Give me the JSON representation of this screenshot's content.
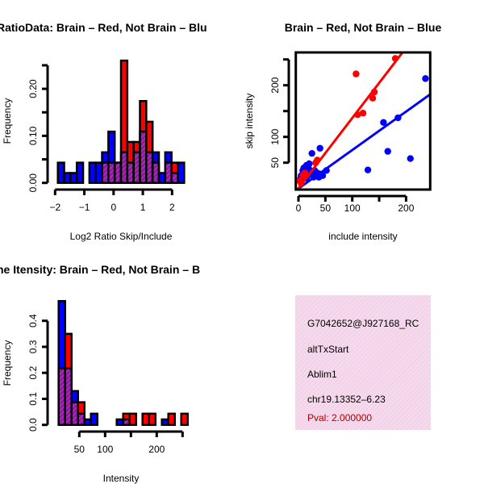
{
  "colors": {
    "brain": "#FF0000",
    "not_brain": "#0000FF",
    "overlap": "#8B1A9B",
    "box_bg": "#F8D8F0"
  },
  "chart_data": [
    {
      "type": "bar",
      "title": "RatioData: Brain – Red, Not Brain – Blu",
      "xlabel": "Log2 Ratio Skip/Include",
      "ylabel": "Frequency",
      "bin_start": -1.906,
      "bin_width": 0.216,
      "xticks": [
        -2,
        -1,
        0,
        1,
        2
      ],
      "xtick_labels": [
        "−2",
        "−1",
        "0",
        "1",
        "2"
      ],
      "yticks": [
        0,
        0.05,
        0.1,
        0.15,
        0.2,
        0.25
      ],
      "ytick_labels": [
        "0.00",
        "",
        "0.10",
        "",
        "0.20",
        ""
      ],
      "series": [
        {
          "name": "Brain",
          "color": "red",
          "values": [
            0,
            0,
            0,
            0,
            0,
            0,
            0,
            0.043,
            0.043,
            0.043,
            0.26,
            0.087,
            0.087,
            0.174,
            0.13,
            0.043,
            0,
            0.043,
            0.043,
            0
          ]
        },
        {
          "name": "Not Brain",
          "color": "blue",
          "values": [
            0.043,
            0.021,
            0.021,
            0.043,
            0,
            0.043,
            0.043,
            0.065,
            0.109,
            0.043,
            0.065,
            0.043,
            0.065,
            0.109,
            0.065,
            0.065,
            0.021,
            0.065,
            0.021,
            0.043
          ]
        }
      ]
    },
    {
      "type": "scatter",
      "title": "Brain – Red, Not Brain – Blue",
      "xlabel": "include intensity",
      "ylabel": "skip intensity",
      "xlim": [
        -5,
        245
      ],
      "ylim": [
        -2,
        264
      ],
      "xticks": [
        0,
        50,
        100,
        150,
        200
      ],
      "xtick_labels": [
        "0",
        "50",
        "100",
        "",
        "200"
      ],
      "yticks": [
        50,
        100,
        150,
        200,
        250
      ],
      "ytick_labels": [
        "50",
        "100",
        "",
        "200",
        ""
      ],
      "series": [
        {
          "name": "Brain",
          "color": "red",
          "points": [
            [
              107,
              222
            ],
            [
              180,
              252
            ],
            [
              141,
              187
            ],
            [
              138,
              175
            ],
            [
              110,
              143
            ],
            [
              120,
              146
            ],
            [
              35,
              55
            ],
            [
              32,
              50
            ],
            [
              2,
              15
            ],
            [
              8,
              25
            ],
            [
              12,
              30
            ],
            [
              5,
              10
            ]
          ],
          "fit": {
            "intercept": 0.6,
            "slope": 1.36
          }
        },
        {
          "name": "Not Brain",
          "color": "blue",
          "points": [
            [
              236,
              213
            ],
            [
              185,
              137
            ],
            [
              158,
              128
            ],
            [
              166,
              72
            ],
            [
              208,
              58
            ],
            [
              129,
              36
            ],
            [
              40,
              78
            ],
            [
              25,
              68
            ],
            [
              5,
              25
            ],
            [
              8,
              35
            ],
            [
              10,
              40
            ],
            [
              12,
              30
            ],
            [
              15,
              45
            ],
            [
              18,
              42
            ],
            [
              20,
              28
            ],
            [
              22,
              35
            ],
            [
              25,
              30
            ],
            [
              28,
              22
            ],
            [
              30,
              25
            ],
            [
              35,
              30
            ],
            [
              38,
              22
            ],
            [
              40,
              28
            ],
            [
              45,
              25
            ],
            [
              52,
              35
            ],
            [
              15,
              20
            ],
            [
              10,
              22
            ],
            [
              3,
              18
            ],
            [
              30,
              35
            ],
            [
              20,
              48
            ],
            [
              12,
              38
            ]
          ],
          "fit": {
            "intercept": 0,
            "slope": 0.745
          }
        }
      ]
    },
    {
      "type": "bar",
      "title": "ne Itensity: Brain – Red, Not Brain – B",
      "xlabel": "Intensity",
      "ylabel": "Frequency",
      "bin_start": 10,
      "bin_width": 12.5,
      "xticks": [
        50,
        100,
        150,
        200,
        250
      ],
      "xtick_labels": [
        "50",
        "100",
        "",
        "200",
        ""
      ],
      "yticks": [
        0,
        0.1,
        0.2,
        0.3,
        0.4
      ],
      "ytick_labels": [
        "0.0",
        "0.1",
        "0.2",
        "0.3",
        "0.4"
      ],
      "series": [
        {
          "name": "Brain",
          "color": "red",
          "values": [
            0.217,
            0.35,
            0.087,
            0.087,
            0,
            0,
            0,
            0,
            0,
            0,
            0.043,
            0.043,
            0,
            0.043,
            0.043,
            0,
            0,
            0.043,
            0,
            0.043
          ]
        },
        {
          "name": "Not Brain",
          "color": "blue",
          "values": [
            0.476,
            0.217,
            0.13,
            0.043,
            0.021,
            0.043,
            0,
            0,
            0,
            0.021,
            0.021,
            0,
            0,
            0,
            0,
            0,
            0.021,
            0,
            0,
            0
          ]
        }
      ]
    }
  ],
  "info": {
    "id": "G7042652@J927168_RC",
    "event_type": "altTxStart",
    "gene": "Ablim1",
    "location": "chr19.13352–6.23",
    "pval": "Pval: 2.000000"
  }
}
